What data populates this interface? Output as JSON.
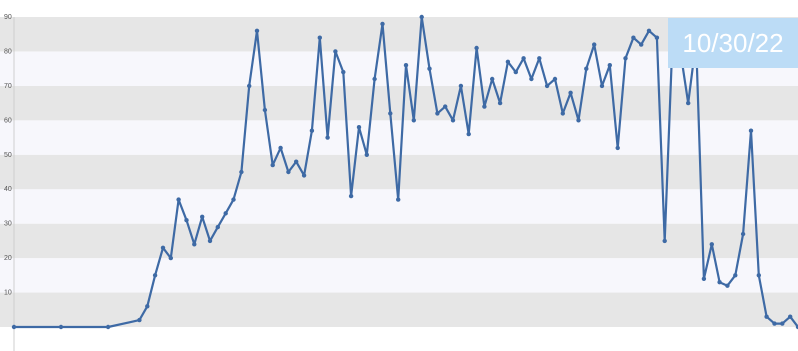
{
  "date_label": "10/30/22",
  "colors": {
    "series": "#3e6aa5",
    "band_dark": "#e6e6e6",
    "band_light": "#f7f7fc",
    "badge_bg": "#bcdcf6",
    "badge_text": "#ffffff"
  },
  "chart_data": {
    "type": "line",
    "title": "",
    "xlabel": "",
    "ylabel": "",
    "ylim": [
      0,
      90
    ],
    "y_ticks": [
      10,
      20,
      30,
      40,
      50,
      60,
      70,
      80,
      90
    ],
    "grid": "alternating horizontal bands",
    "legend": "none",
    "series": [
      {
        "x": [
          0,
          6,
          12,
          16,
          17,
          18,
          19,
          20,
          21,
          22,
          23,
          24,
          25,
          26,
          27,
          28,
          29,
          30,
          31,
          32,
          33,
          34,
          35,
          36,
          37,
          38,
          39,
          40,
          41,
          42,
          43,
          44,
          45,
          46,
          47,
          48,
          49,
          50,
          51,
          52,
          53,
          54,
          55,
          56,
          57,
          58,
          59,
          60,
          61,
          62,
          63,
          64,
          65,
          66,
          67,
          68,
          69,
          70,
          71,
          72,
          73,
          74,
          75,
          76,
          77,
          78,
          79,
          80,
          81,
          82,
          83,
          84,
          85,
          86,
          87,
          88,
          89,
          90,
          91,
          92,
          93,
          94,
          95,
          96,
          97,
          98,
          99,
          100
        ],
        "values": [
          0,
          0,
          0,
          2,
          6,
          15,
          23,
          20,
          37,
          31,
          24,
          32,
          25,
          29,
          33,
          37,
          45,
          70,
          86,
          63,
          47,
          52,
          45,
          48,
          44,
          57,
          84,
          55,
          80,
          74,
          38,
          58,
          50,
          72,
          88,
          62,
          37,
          76,
          60,
          90,
          75,
          62,
          64,
          60,
          70,
          56,
          81,
          64,
          72,
          65,
          77,
          74,
          78,
          72,
          78,
          70,
          72,
          62,
          68,
          60,
          75,
          82,
          70,
          76,
          52,
          78,
          84,
          82,
          86,
          84,
          25,
          84,
          80,
          65,
          83,
          14,
          24,
          13,
          12,
          15,
          27,
          57,
          15,
          3,
          1,
          1,
          3,
          0
        ]
      }
    ]
  }
}
